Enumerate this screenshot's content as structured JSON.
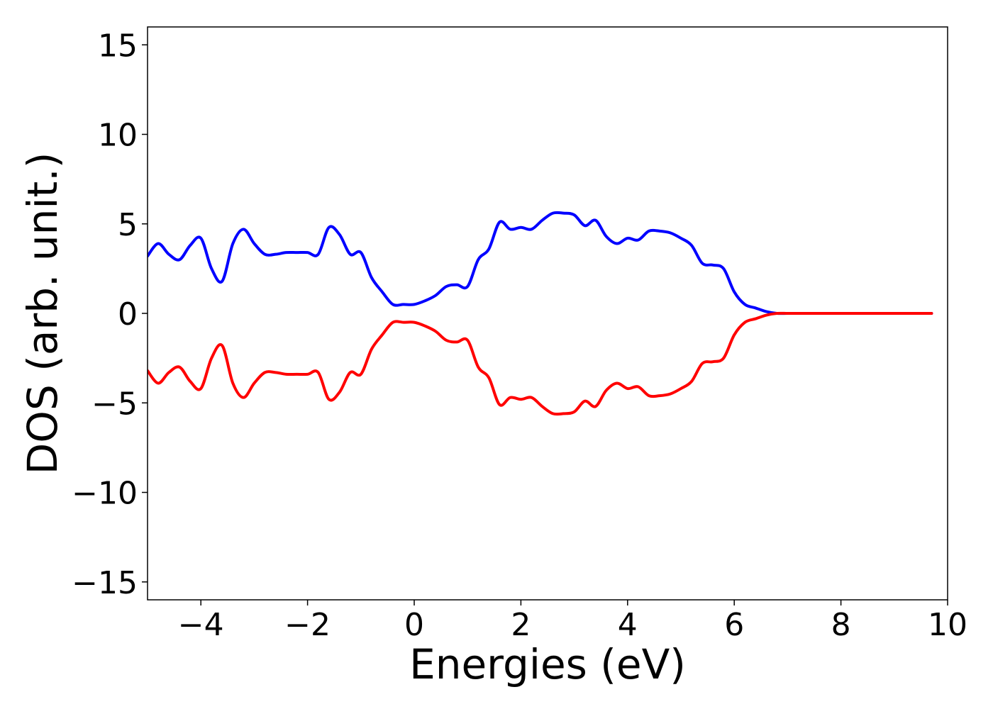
{
  "chart_data": {
    "type": "line",
    "xlabel": "Energies (eV)",
    "ylabel": "DOS (arb. unit.)",
    "xlim": [
      -5,
      10
    ],
    "ylim": [
      -16,
      16
    ],
    "xticks": [
      -4,
      -2,
      0,
      2,
      4,
      6,
      8,
      10
    ],
    "xtick_labels": [
      "−4",
      "−2",
      "0",
      "2",
      "4",
      "6",
      "8",
      "10"
    ],
    "yticks": [
      15,
      10,
      5,
      0,
      -5,
      -10,
      -15
    ],
    "ytick_labels": [
      "15",
      "10",
      "5",
      "0",
      "−5",
      "−10",
      "−15"
    ],
    "grid": false,
    "x": [
      -5.0,
      -4.8,
      -4.6,
      -4.4,
      -4.2,
      -4.0,
      -3.8,
      -3.6,
      -3.4,
      -3.2,
      -3.0,
      -2.8,
      -2.6,
      -2.4,
      -2.2,
      -2.0,
      -1.8,
      -1.6,
      -1.4,
      -1.2,
      -1.0,
      -0.8,
      -0.6,
      -0.4,
      -0.2,
      0.0,
      0.2,
      0.4,
      0.6,
      0.8,
      1.0,
      1.2,
      1.4,
      1.6,
      1.8,
      2.0,
      2.2,
      2.4,
      2.6,
      2.8,
      3.0,
      3.2,
      3.4,
      3.6,
      3.8,
      4.0,
      4.2,
      4.4,
      4.6,
      4.8,
      5.0,
      5.2,
      5.4,
      5.6,
      5.8,
      6.0,
      6.2,
      6.4,
      6.6,
      6.8,
      7.0,
      7.2,
      7.4,
      7.6,
      7.8,
      8.0,
      8.5,
      9.0,
      9.7
    ],
    "series": [
      {
        "color": "#0000ff",
        "values": [
          3.2,
          3.9,
          3.3,
          3.0,
          3.8,
          4.2,
          2.5,
          1.8,
          3.9,
          4.7,
          3.9,
          3.3,
          3.3,
          3.4,
          3.4,
          3.4,
          3.3,
          4.8,
          4.4,
          3.3,
          3.4,
          2.0,
          1.2,
          0.5,
          0.5,
          0.5,
          0.7,
          1.0,
          1.5,
          1.6,
          1.5,
          3.0,
          3.6,
          5.1,
          4.7,
          4.8,
          4.7,
          5.2,
          5.6,
          5.6,
          5.5,
          4.9,
          5.2,
          4.3,
          3.9,
          4.2,
          4.1,
          4.6,
          4.6,
          4.5,
          4.2,
          3.8,
          2.8,
          2.7,
          2.5,
          1.2,
          0.5,
          0.3,
          0.1,
          0.0,
          0.0,
          0.0,
          0.0,
          0.0,
          0.0,
          0.0,
          0.0,
          0.0,
          0.0
        ]
      },
      {
        "color": "#ff0000",
        "values": [
          -3.2,
          -3.9,
          -3.3,
          -3.0,
          -3.8,
          -4.2,
          -2.5,
          -1.8,
          -3.9,
          -4.7,
          -3.9,
          -3.3,
          -3.3,
          -3.4,
          -3.4,
          -3.4,
          -3.3,
          -4.8,
          -4.4,
          -3.3,
          -3.4,
          -2.0,
          -1.2,
          -0.5,
          -0.5,
          -0.5,
          -0.7,
          -1.0,
          -1.5,
          -1.6,
          -1.5,
          -3.0,
          -3.6,
          -5.1,
          -4.7,
          -4.8,
          -4.7,
          -5.2,
          -5.6,
          -5.6,
          -5.5,
          -4.9,
          -5.2,
          -4.3,
          -3.9,
          -4.2,
          -4.1,
          -4.6,
          -4.6,
          -4.5,
          -4.2,
          -3.8,
          -2.8,
          -2.7,
          -2.5,
          -1.2,
          -0.5,
          -0.3,
          -0.1,
          0.0,
          0.0,
          0.0,
          0.0,
          0.0,
          0.0,
          0.0,
          0.0,
          0.0,
          0.0
        ]
      }
    ]
  }
}
